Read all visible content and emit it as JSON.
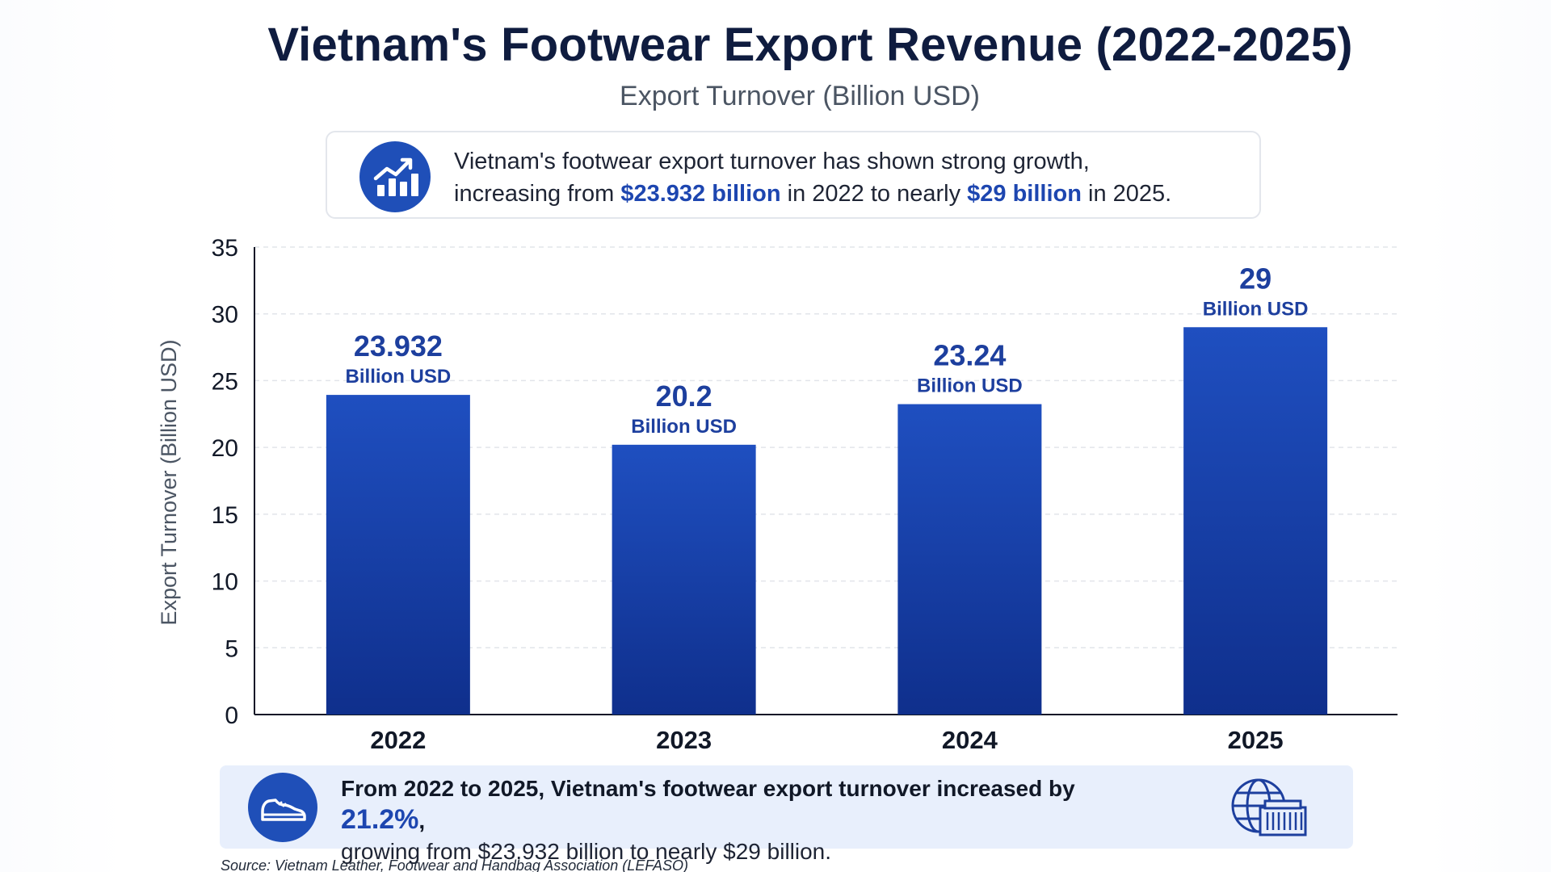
{
  "title": "Vietnam's Footwear Export Revenue (2022-2025)",
  "subtitle": "Export Turnover (Billion USD)",
  "insight": {
    "icon": "growth-chart-icon",
    "text_1": "Vietnam's footwear export turnover has shown strong growth,",
    "text_2a": "increasing from ",
    "highlight_1": "$23.932 billion",
    "text_2b": " in 2022 to nearly ",
    "highlight_2": "$29 billion",
    "text_2c": " in 2025."
  },
  "chart_data": {
    "type": "bar",
    "categories": [
      "2022",
      "2023",
      "2024",
      "2025"
    ],
    "values": [
      23.932,
      20.2,
      23.24,
      29
    ],
    "value_labels": [
      "23.932",
      "20.2",
      "23.24",
      "29"
    ],
    "value_unit": "Billion USD",
    "ylabel": "Export Turnover (Billion USD)",
    "xlabel": "",
    "ylim": [
      0,
      35
    ],
    "yticks": [
      0,
      5,
      10,
      15,
      20,
      25,
      30,
      35
    ],
    "grid": true,
    "bar_color": "#1f4fc0",
    "bar_color_dark": "#0f2f8c"
  },
  "summary": {
    "icon": "sneaker-icon",
    "text_bold": "From 2022 to 2025, Vietnam's footwear export turnover increased by ",
    "highlight": "21.2%",
    "text_bold_end": ",",
    "text_2": "growing from $23.932 billion to nearly $29 billion.",
    "right_icon": "globe-container-icon"
  },
  "source": "Source: Vietnam Leather, Footwear and Handbag Association (LEFASO)",
  "colors": {
    "accent": "#1d46b0",
    "title": "#0f1c3f",
    "summary_bg": "#e8effc"
  }
}
